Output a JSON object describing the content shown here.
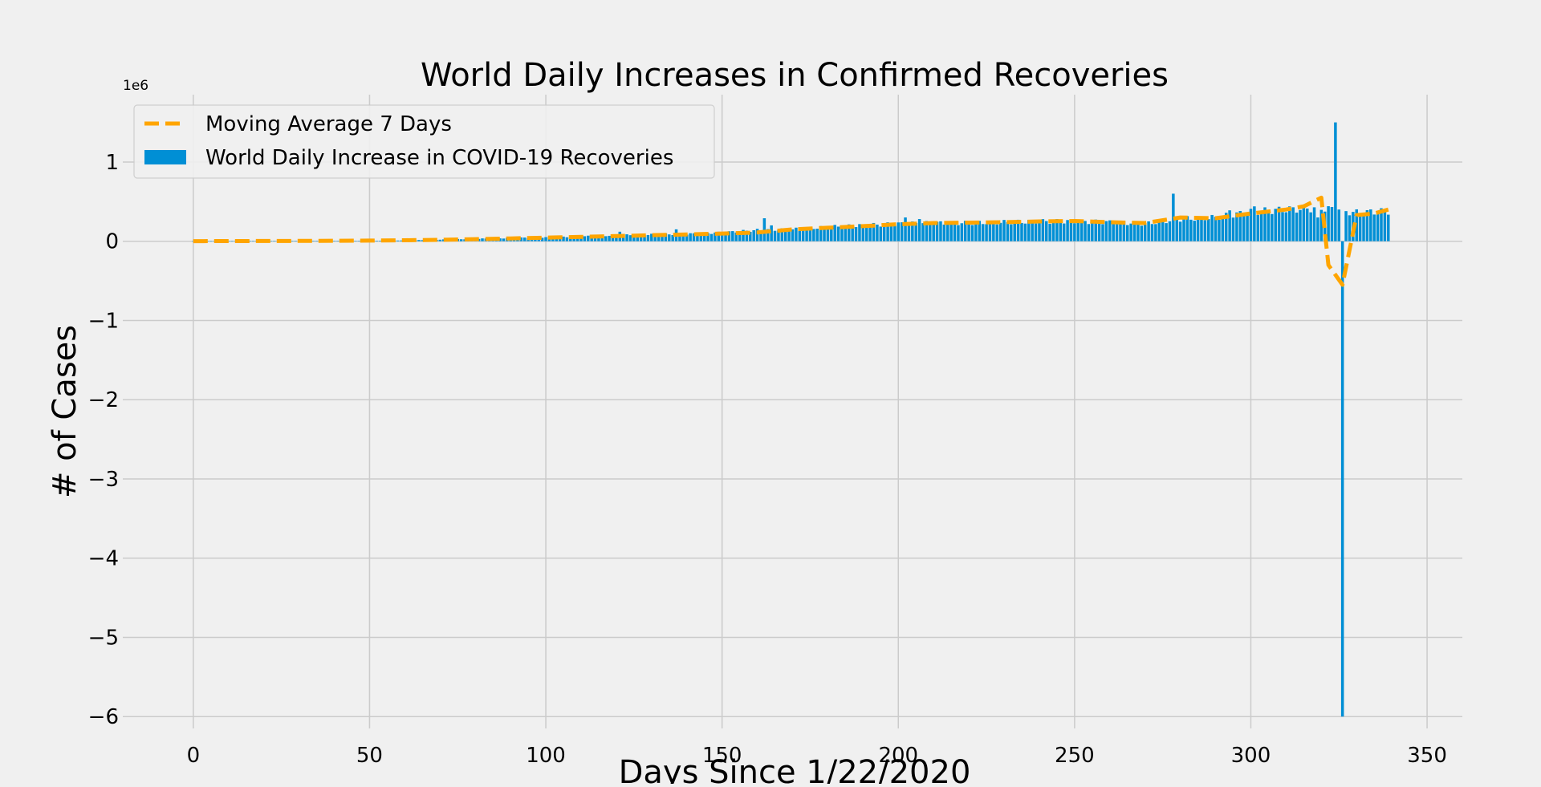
{
  "chart_data": {
    "type": "bar",
    "title": "World Daily Increases in Confirmed Recoveries",
    "xlabel": "Days Since 1/22/2020",
    "ylabel": "# of Cases",
    "y_offset_label": "1e6",
    "xlim": [
      -20,
      360
    ],
    "ylim": [
      -6.15,
      1.85
    ],
    "x_ticks": [
      0,
      50,
      100,
      150,
      200,
      250,
      300,
      350
    ],
    "x_tick_labels": [
      "0",
      "50",
      "100",
      "150",
      "200",
      "250",
      "300",
      "350"
    ],
    "y_ticks": [
      -6,
      -5,
      -4,
      -3,
      -2,
      -1,
      0,
      1
    ],
    "y_tick_labels": [
      "−6",
      "−5",
      "−4",
      "−3",
      "−2",
      "−1",
      "0",
      "1"
    ],
    "grid": true,
    "legend_position": "top-left",
    "colors": {
      "bars": "#008fd5",
      "moving_average": "#ffa500",
      "grid": "#cbcbcb",
      "background": "#f0f0f0"
    },
    "series": [
      {
        "name": "Moving Average 7 Days",
        "type": "line",
        "style": "dashed",
        "x_start": 0,
        "x_step": 10,
        "values": [
          0.001,
          0.002,
          0.003,
          0.004,
          0.006,
          0.008,
          0.012,
          0.018,
          0.026,
          0.035,
          0.045,
          0.055,
          0.065,
          0.076,
          0.086,
          0.097,
          0.11,
          0.15,
          0.17,
          0.19,
          0.215,
          0.23,
          0.235,
          0.24,
          0.25,
          0.255,
          0.24,
          0.23,
          0.3,
          0.29,
          0.35,
          0.4
        ],
        "points_extra": [
          [
            315,
            0.44
          ],
          [
            320,
            0.55
          ],
          [
            322,
            -0.3
          ],
          [
            326,
            -0.55
          ],
          [
            330,
            0.33
          ],
          [
            335,
            0.35
          ],
          [
            339,
            0.4
          ]
        ]
      },
      {
        "name": "World Daily Increase in COVID-19 Recoveries",
        "type": "bar",
        "x_start": 0,
        "anchors": [
          [
            0,
            0.0005
          ],
          [
            30,
            0.002
          ],
          [
            50,
            0.005
          ],
          [
            60,
            0.01
          ],
          [
            70,
            0.02
          ],
          [
            80,
            0.03
          ],
          [
            90,
            0.04
          ],
          [
            100,
            0.05
          ],
          [
            110,
            0.06
          ],
          [
            120,
            0.075
          ],
          [
            130,
            0.085
          ],
          [
            140,
            0.09
          ],
          [
            150,
            0.11
          ],
          [
            160,
            0.14
          ],
          [
            170,
            0.15
          ],
          [
            180,
            0.18
          ],
          [
            190,
            0.2
          ],
          [
            200,
            0.22
          ],
          [
            210,
            0.23
          ],
          [
            220,
            0.23
          ],
          [
            230,
            0.24
          ],
          [
            240,
            0.25
          ],
          [
            250,
            0.25
          ],
          [
            260,
            0.24
          ],
          [
            270,
            0.22
          ],
          [
            280,
            0.28
          ],
          [
            290,
            0.3
          ],
          [
            300,
            0.37
          ],
          [
            310,
            0.4
          ],
          [
            320,
            0.42
          ],
          [
            330,
            0.36
          ],
          [
            339,
            0.38
          ]
        ],
        "overrides": [
          [
            121,
            0.12
          ],
          [
            137,
            0.15
          ],
          [
            162,
            0.29
          ],
          [
            164,
            0.2
          ],
          [
            202,
            0.3
          ],
          [
            206,
            0.28
          ],
          [
            278,
            0.6
          ],
          [
            294,
            0.39
          ],
          [
            301,
            0.44
          ],
          [
            319,
            0.3
          ],
          [
            324,
            1.5
          ],
          [
            325,
            0.4
          ],
          [
            326,
            -6.0
          ],
          [
            327,
            0.38
          ]
        ]
      }
    ]
  }
}
